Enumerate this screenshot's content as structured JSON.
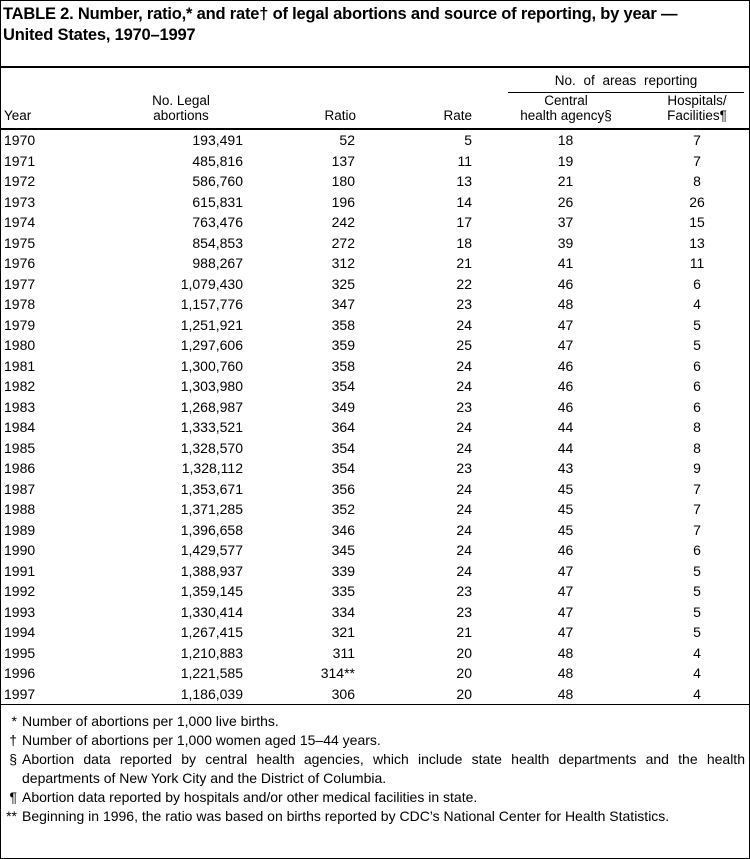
{
  "title": {
    "line1": "TABLE 2. Number, ratio,* and rate† of legal abortions and source of reporting, by year —",
    "line2": "United States, 1970–1997"
  },
  "table": {
    "group_header": "No. of areas reporting",
    "headers": {
      "year": "Year",
      "abortions_line1": "No. Legal",
      "abortions_line2": "abortions",
      "ratio": "Ratio",
      "rate": "Rate",
      "central_line1": "Central",
      "central_line2": "health agency§",
      "hospitals_line1": "Hospitals/",
      "hospitals_line2": "Facilities¶"
    },
    "rows": [
      [
        "1970",
        "193,491",
        "52",
        "5",
        "18",
        "7"
      ],
      [
        "1971",
        "485,816",
        "137",
        "11",
        "19",
        "7"
      ],
      [
        "1972",
        "586,760",
        "180",
        "13",
        "21",
        "8"
      ],
      [
        "1973",
        "615,831",
        "196",
        "14",
        "26",
        "26"
      ],
      [
        "1974",
        "763,476",
        "242",
        "17",
        "37",
        "15"
      ],
      [
        "1975",
        "854,853",
        "272",
        "18",
        "39",
        "13"
      ],
      [
        "1976",
        "988,267",
        "312",
        "21",
        "41",
        "11"
      ],
      [
        "1977",
        "1,079,430",
        "325",
        "22",
        "46",
        "6"
      ],
      [
        "1978",
        "1,157,776",
        "347",
        "23",
        "48",
        "4"
      ],
      [
        "1979",
        "1,251,921",
        "358",
        "24",
        "47",
        "5"
      ],
      [
        "1980",
        "1,297,606",
        "359",
        "25",
        "47",
        "5"
      ],
      [
        "1981",
        "1,300,760",
        "358",
        "24",
        "46",
        "6"
      ],
      [
        "1982",
        "1,303,980",
        "354",
        "24",
        "46",
        "6"
      ],
      [
        "1983",
        "1,268,987",
        "349",
        "23",
        "46",
        "6"
      ],
      [
        "1984",
        "1,333,521",
        "364",
        "24",
        "44",
        "8"
      ],
      [
        "1985",
        "1,328,570",
        "354",
        "24",
        "44",
        "8"
      ],
      [
        "1986",
        "1,328,112",
        "354",
        "23",
        "43",
        "9"
      ],
      [
        "1987",
        "1,353,671",
        "356",
        "24",
        "45",
        "7"
      ],
      [
        "1988",
        "1,371,285",
        "352",
        "24",
        "45",
        "7"
      ],
      [
        "1989",
        "1,396,658",
        "346",
        "24",
        "45",
        "7"
      ],
      [
        "1990",
        "1,429,577",
        "345",
        "24",
        "46",
        "6"
      ],
      [
        "1991",
        "1,388,937",
        "339",
        "24",
        "47",
        "5"
      ],
      [
        "1992",
        "1,359,145",
        "335",
        "23",
        "47",
        "5"
      ],
      [
        "1993",
        "1,330,414",
        "334",
        "23",
        "47",
        "5"
      ],
      [
        "1994",
        "1,267,415",
        "321",
        "21",
        "47",
        "5"
      ],
      [
        "1995",
        "1,210,883",
        "311",
        "20",
        "48",
        "4"
      ],
      [
        "1996",
        "1,221,585",
        "314**",
        "20",
        "48",
        "4"
      ],
      [
        "1997",
        "1,186,039",
        "306",
        "20",
        "48",
        "4"
      ]
    ]
  },
  "footnotes": [
    {
      "marker": "*",
      "text": "Number of abortions per 1,000 live births."
    },
    {
      "marker": "†",
      "text": "Number of abortions per 1,000 women aged 15–44 years."
    },
    {
      "marker": "§",
      "text": "Abortion data reported by central health agencies, which include state health departments and the health departments of New York City and the District of Columbia."
    },
    {
      "marker": "¶",
      "text": "Abortion data reported by hospitals and/or other medical facilities in state."
    },
    {
      "marker": "**",
      "text": "Beginning in 1996, the ratio was based on births reported by CDC’s National Center for Health Statistics."
    }
  ]
}
